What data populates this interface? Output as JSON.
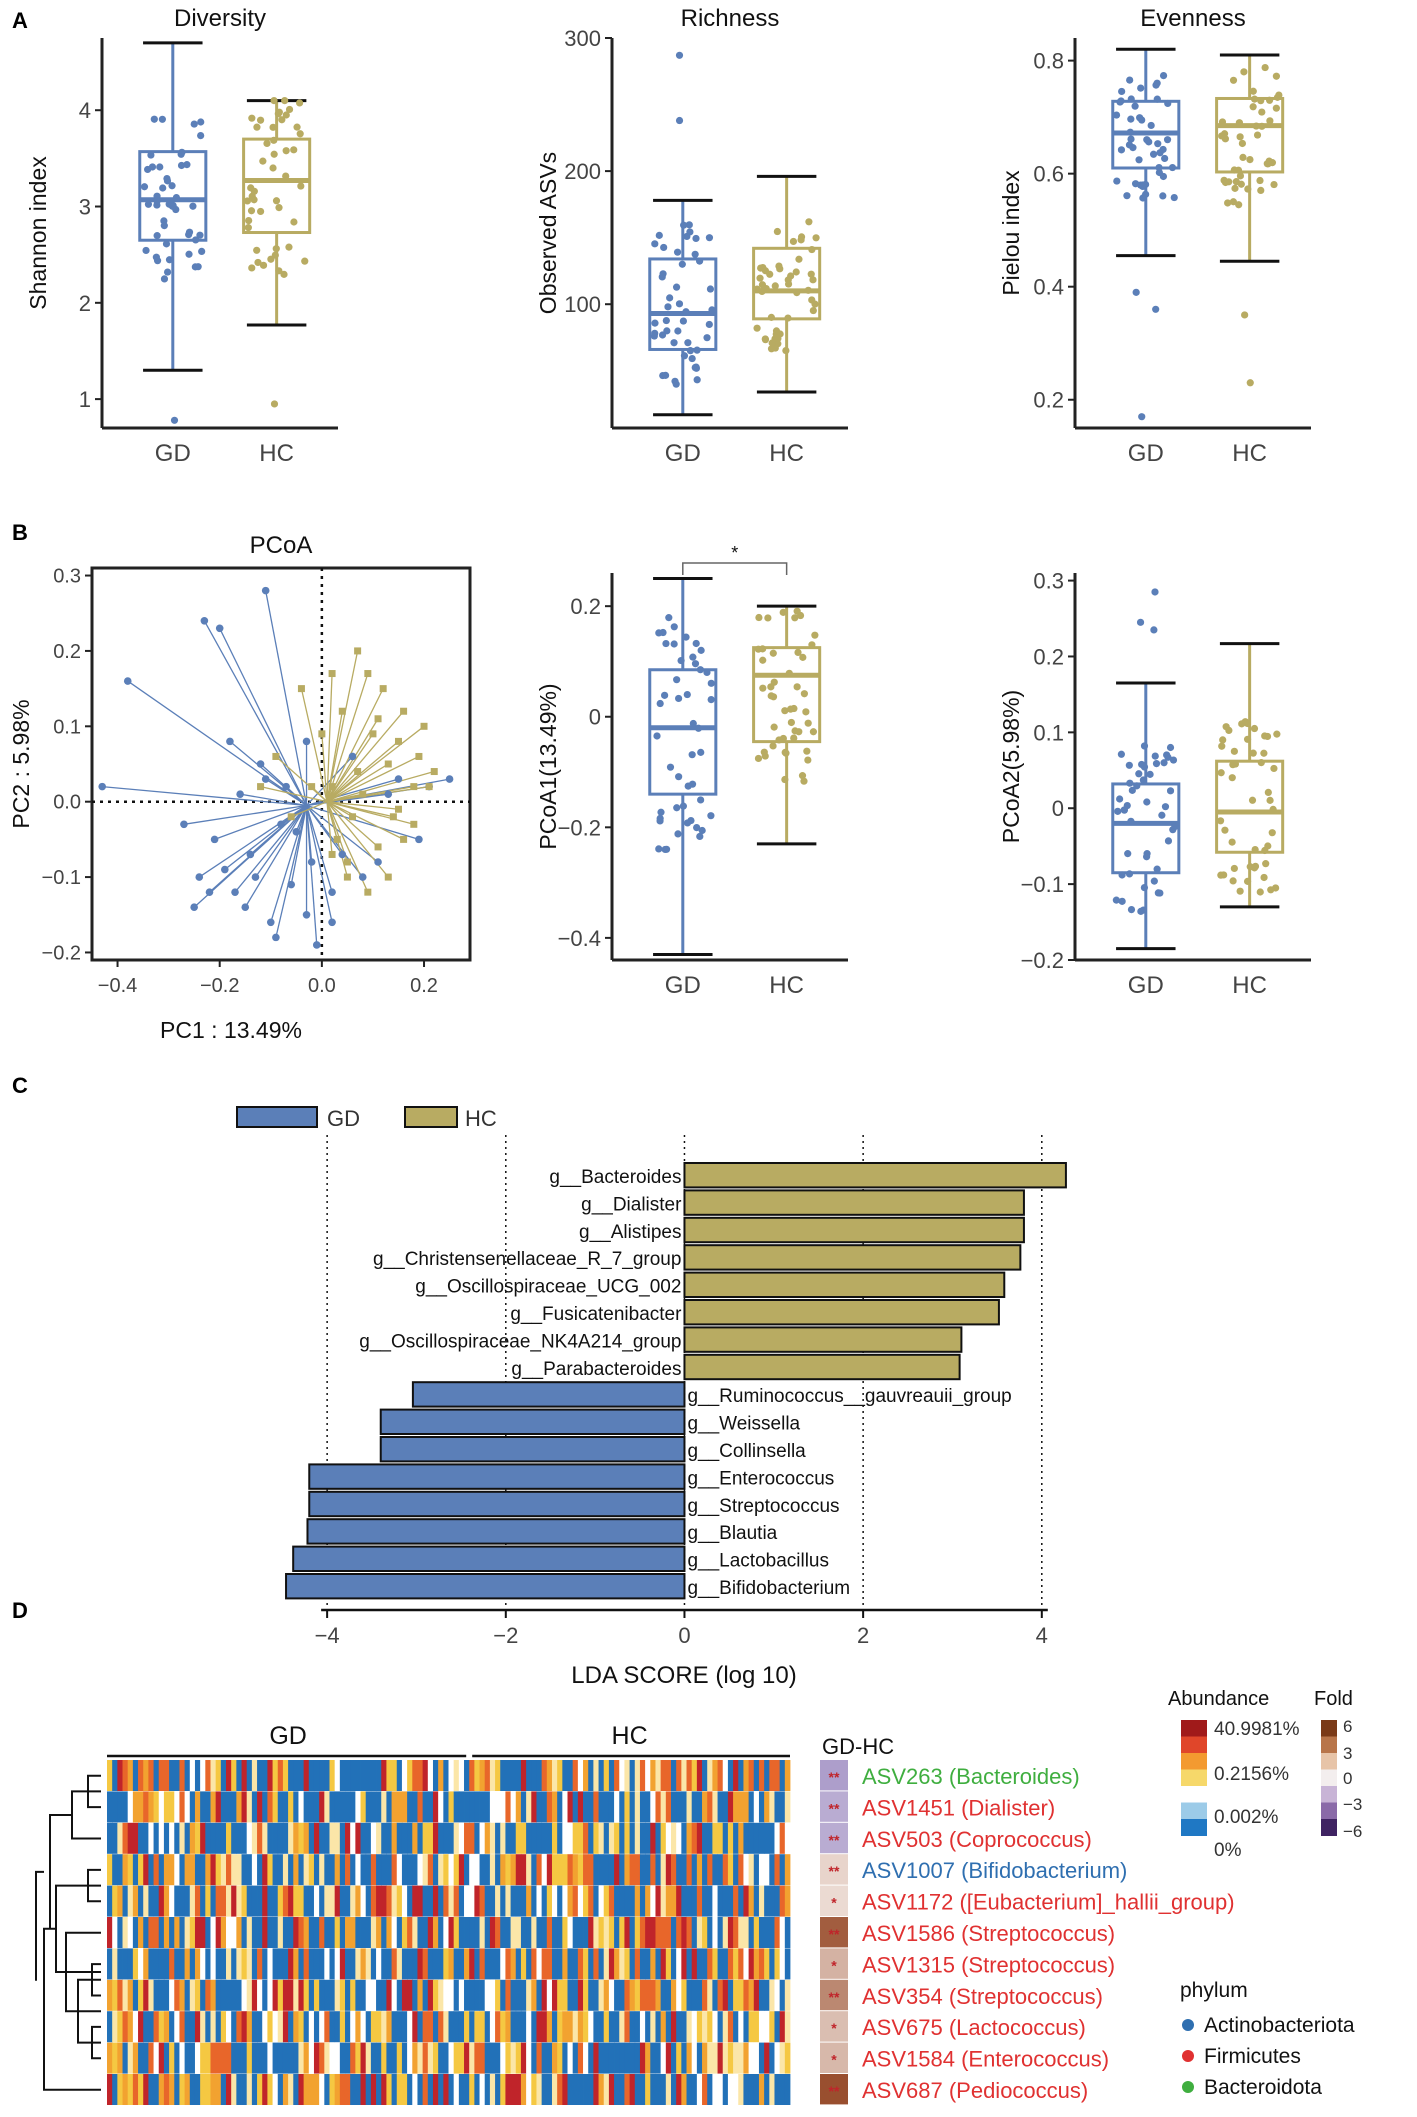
{
  "panel_labels": [
    "A",
    "B",
    "C",
    "D"
  ],
  "groups": [
    "GD",
    "HC"
  ],
  "colors": {
    "GD": "#5b7fb8",
    "HC": "#b8ab62",
    "axis": "#222222"
  },
  "chart_data": [
    {
      "type": "box",
      "title": "Diversity",
      "ylabel": "Shannon index",
      "categories": [
        "GD",
        "HC"
      ],
      "ylim": [
        0.7,
        4.75
      ],
      "yticks": [
        1,
        2,
        3,
        4
      ],
      "boxes": [
        {
          "group": "GD",
          "min": 1.3,
          "q1": 2.65,
          "median": 3.07,
          "q3": 3.57,
          "max": 4.7
        },
        {
          "group": "HC",
          "min": 1.77,
          "q1": 2.73,
          "median": 3.27,
          "q3": 3.7,
          "max": 4.1
        }
      ],
      "outliers": {
        "GD": [
          0.78
        ],
        "HC": [
          0.95
        ]
      }
    },
    {
      "type": "box",
      "title": "Richness",
      "ylabel": "Observed ASVs",
      "categories": [
        "GD",
        "HC"
      ],
      "ylim": [
        7,
        300
      ],
      "yticks": [
        100,
        200,
        300
      ],
      "boxes": [
        {
          "group": "GD",
          "min": 17,
          "q1": 66,
          "median": 93,
          "q3": 134,
          "max": 178
        },
        {
          "group": "HC",
          "min": 34,
          "q1": 89,
          "median": 110,
          "q3": 142,
          "max": 196
        }
      ],
      "outliers": {
        "GD": [
          287,
          238
        ],
        "HC": []
      }
    },
    {
      "type": "box",
      "title": "Evenness",
      "ylabel": "Pielou index",
      "categories": [
        "GD",
        "HC"
      ],
      "ylim": [
        0.15,
        0.84
      ],
      "yticks": [
        0.2,
        0.4,
        0.6,
        0.8
      ],
      "boxes": [
        {
          "group": "GD",
          "min": 0.455,
          "q1": 0.61,
          "median": 0.672,
          "q3": 0.728,
          "max": 0.82
        },
        {
          "group": "HC",
          "min": 0.445,
          "q1": 0.603,
          "median": 0.685,
          "q3": 0.733,
          "max": 0.81
        }
      ],
      "outliers": {
        "GD": [
          0.17,
          0.36,
          0.39
        ],
        "HC": [
          0.23,
          0.35
        ]
      }
    },
    {
      "type": "scatter",
      "title": "PCoA",
      "xlabel": "PC1 : 13.49%",
      "ylabel": "PC2 : 5.98%",
      "xlim": [
        -0.45,
        0.29
      ],
      "ylim": [
        -0.21,
        0.31
      ],
      "xticks": [
        -0.4,
        -0.2,
        0.0,
        0.2
      ],
      "yticks": [
        -0.2,
        -0.1,
        0.0,
        0.1,
        0.2,
        0.3
      ],
      "centroid": {
        "GD": [
          -0.03,
          -0.005
        ],
        "HC": [
          0.01,
          0.0
        ]
      },
      "series": [
        {
          "name": "GD",
          "points": [
            [
              -0.11,
              0.28
            ],
            [
              -0.23,
              0.24
            ],
            [
              -0.38,
              0.16
            ],
            [
              -0.2,
              0.23
            ],
            [
              -0.18,
              0.08
            ],
            [
              -0.43,
              0.02
            ],
            [
              -0.27,
              -0.03
            ],
            [
              -0.24,
              -0.1
            ],
            [
              -0.25,
              -0.14
            ],
            [
              -0.17,
              -0.12
            ],
            [
              -0.09,
              -0.18
            ],
            [
              -0.03,
              -0.15
            ],
            [
              -0.01,
              -0.19
            ],
            [
              -0.06,
              -0.11
            ],
            [
              -0.14,
              -0.07
            ],
            [
              -0.21,
              -0.05
            ],
            [
              0.02,
              -0.12
            ],
            [
              0.04,
              -0.07
            ],
            [
              -0.12,
              0.05
            ],
            [
              -0.08,
              -0.03
            ],
            [
              0.11,
              -0.08
            ],
            [
              -0.15,
              -0.14
            ],
            [
              -0.19,
              -0.09
            ],
            [
              -0.03,
              0.08
            ],
            [
              0.25,
              0.03
            ],
            [
              0.15,
              0.03
            ],
            [
              0.21,
              0.02
            ],
            [
              0.19,
              -0.05
            ],
            [
              -0.11,
              0.03
            ],
            [
              0.06,
              0.06
            ],
            [
              -0.05,
              -0.04
            ],
            [
              -0.22,
              -0.12
            ],
            [
              -0.13,
              -0.1
            ],
            [
              0.08,
              -0.1
            ],
            [
              0.02,
              -0.16
            ],
            [
              -0.07,
              0.02
            ],
            [
              -0.1,
              -0.16
            ],
            [
              0.13,
              0.01
            ],
            [
              -0.16,
              0.01
            ],
            [
              -0.02,
              -0.08
            ]
          ]
        },
        {
          "name": "HC",
          "points": [
            [
              -0.04,
              0.15
            ],
            [
              0.02,
              0.17
            ],
            [
              0.04,
              0.12
            ],
            [
              0.07,
              0.2
            ],
            [
              0.09,
              0.17
            ],
            [
              0.12,
              0.15
            ],
            [
              0.1,
              0.09
            ],
            [
              0.15,
              0.08
            ],
            [
              0.2,
              0.1
            ],
            [
              0.22,
              0.04
            ],
            [
              0.18,
              0.02
            ],
            [
              0.14,
              -0.02
            ],
            [
              0.16,
              -0.05
            ],
            [
              0.13,
              -0.1
            ],
            [
              0.09,
              -0.12
            ],
            [
              0.05,
              -0.08
            ],
            [
              0.03,
              -0.05
            ],
            [
              0.07,
              0.04
            ],
            [
              -0.09,
              0.06
            ],
            [
              -0.12,
              0.02
            ],
            [
              0.11,
              -0.06
            ],
            [
              0.18,
              -0.03
            ],
            [
              0.02,
              0.02
            ],
            [
              0.16,
              0.12
            ],
            [
              0.06,
              -0.02
            ],
            [
              0.0,
              0.09
            ],
            [
              -0.02,
              0.02
            ],
            [
              0.19,
              0.06
            ],
            [
              0.11,
              0.11
            ],
            [
              0.13,
              0.05
            ],
            [
              0.05,
              -0.1
            ],
            [
              0.02,
              -0.07
            ],
            [
              -0.06,
              -0.02
            ],
            [
              0.08,
              0.01
            ],
            [
              0.21,
              0.02
            ],
            [
              0.15,
              -0.01
            ]
          ]
        }
      ]
    },
    {
      "type": "box",
      "title": "",
      "ylabel": "PCoA1(13.49%)",
      "categories": [
        "GD",
        "HC"
      ],
      "ylim": [
        -0.44,
        0.26
      ],
      "yticks": [
        -0.4,
        -0.2,
        0.0,
        0.2
      ],
      "significance": "*",
      "boxes": [
        {
          "group": "GD",
          "min": -0.43,
          "q1": -0.14,
          "median": -0.02,
          "q3": 0.085,
          "max": 0.25
        },
        {
          "group": "HC",
          "min": -0.23,
          "q1": -0.045,
          "median": 0.075,
          "q3": 0.125,
          "max": 0.2
        }
      ],
      "outliers": {
        "GD": [],
        "HC": []
      }
    },
    {
      "type": "box",
      "title": "",
      "ylabel": "PCoA2(5.98%)",
      "categories": [
        "GD",
        "HC"
      ],
      "ylim": [
        -0.2,
        0.31
      ],
      "yticks": [
        -0.2,
        -0.1,
        0.0,
        0.1,
        0.2,
        0.3
      ],
      "boxes": [
        {
          "group": "GD",
          "min": -0.185,
          "q1": -0.085,
          "median": -0.02,
          "q3": 0.032,
          "max": 0.165
        },
        {
          "group": "HC",
          "min": -0.13,
          "q1": -0.058,
          "median": -0.005,
          "q3": 0.062,
          "max": 0.217
        }
      ],
      "outliers": {
        "GD": [
          0.285,
          0.245,
          0.235
        ],
        "HC": []
      }
    },
    {
      "type": "bar",
      "orientation": "horizontal",
      "xlabel": "LDA SCORE (log 10)",
      "xlim": [
        -4.55,
        4.45
      ],
      "xticks": [
        -4,
        -2,
        0,
        2,
        4
      ],
      "legend": [
        "GD",
        "HC"
      ],
      "categories": [
        "g__Bacteroides",
        "g__Dialister",
        "g__Alistipes",
        "g__Christensenellaceae_R_7_group",
        "g__Oscillospiraceae_UCG_002",
        "g__Fusicatenibacter",
        "g__Oscillospiraceae_NK4A214_group",
        "g__Parabacteroides",
        "g__Ruminococcus__gauvreauii_group",
        "g__Weissella",
        "g__Collinsella",
        "g__Enterococcus",
        "g__Streptococcus",
        "g__Blautia",
        "g__Lactobacillus",
        "g__Bifidobacterium"
      ],
      "values": [
        4.27,
        3.8,
        3.8,
        3.76,
        3.58,
        3.52,
        3.1,
        3.08,
        -3.04,
        -3.4,
        -3.4,
        -4.2,
        -4.2,
        -4.22,
        -4.38,
        -4.46
      ],
      "groups": [
        "HC",
        "HC",
        "HC",
        "HC",
        "HC",
        "HC",
        "HC",
        "HC",
        "GD",
        "GD",
        "GD",
        "GD",
        "GD",
        "GD",
        "GD",
        "GD"
      ]
    },
    {
      "type": "heatmap",
      "column_groups": [
        {
          "name": "GD",
          "n": 70
        },
        {
          "name": "HC",
          "n": 62
        }
      ],
      "side_header": "GD-HC",
      "rows": [
        {
          "label": "ASV263 (Bacteroides)",
          "phylum": "Bacteroidota",
          "sig": "**",
          "fold": -2.5
        },
        {
          "label": "ASV1451 (Dialister)",
          "phylum": "Firmicutes",
          "sig": "**",
          "fold": -2.0
        },
        {
          "label": "ASV503 (Coprococcus)",
          "phylum": "Firmicutes",
          "sig": "**",
          "fold": -2.0
        },
        {
          "label": "ASV1007 (Bifidobacterium)",
          "phylum": "Actinobacteriota",
          "sig": "**",
          "fold": 0.8
        },
        {
          "label": "ASV1172 ([Eubacterium]_hallii_group)",
          "phylum": "Firmicutes",
          "sig": "*",
          "fold": 0.6
        },
        {
          "label": "ASV1586 (Streptococcus)",
          "phylum": "Firmicutes",
          "sig": "**",
          "fold": 5.0
        },
        {
          "label": "ASV1315 (Streptococcus)",
          "phylum": "Firmicutes",
          "sig": "*",
          "fold": 2.0
        },
        {
          "label": "ASV354 (Streptococcus)",
          "phylum": "Firmicutes",
          "sig": "**",
          "fold": 3.5
        },
        {
          "label": "ASV675 (Lactococcus)",
          "phylum": "Firmicutes",
          "sig": "*",
          "fold": 1.6
        },
        {
          "label": "ASV1584 (Enterococcus)",
          "phylum": "Firmicutes",
          "sig": "*",
          "fold": 1.8
        },
        {
          "label": "ASV687 (Pediococcus)",
          "phylum": "Firmicutes",
          "sig": "**",
          "fold": 5.5
        }
      ],
      "abundance_legend": {
        "title": "Abundance",
        "labels": [
          "40.9981%",
          "0.2156%",
          "0.002%",
          "0%"
        ]
      },
      "fold_legend": {
        "title": "Fold",
        "labels": [
          "6",
          "3",
          "0",
          "−3",
          "−6"
        ]
      },
      "phylum_legend": {
        "title": "phylum",
        "items": [
          {
            "name": "Actinobacteriota",
            "color": "#2f6fb0"
          },
          {
            "name": "Firmicutes",
            "color": "#e03131"
          },
          {
            "name": "Bacteroidota",
            "color": "#3fae3f"
          }
        ]
      }
    }
  ]
}
